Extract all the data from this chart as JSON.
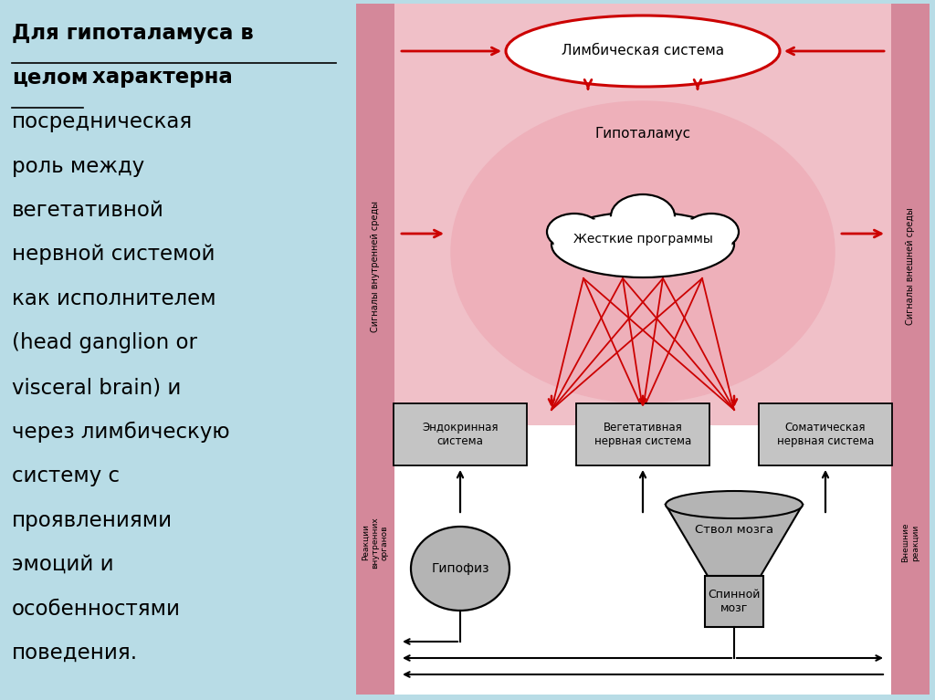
{
  "bg_color": "#b8dce6",
  "pink_strip_color": "#d4889a",
  "pink_bg_color": "#f0c0c8",
  "hypo_circle_color": "#eeb0ba",
  "red_color": "#cc0000",
  "gray_fill": "#b4b4b4",
  "gray_box": "#c4c4c4",
  "white": "#ffffff",
  "black": "#000000",
  "limbic_label": "Лимбическая система",
  "hypothalamus_label": "Гипоталамус",
  "programs_label": "Жесткие программы",
  "inner_signals_label": "Сигналы внутренней среды",
  "outer_signals_label": "Сигналы внешней среды",
  "endocrine_label": "Эндокринная\nсистема",
  "vegetative_label": "Вегетативная\nнервная система",
  "somatic_label": "Соматическая\nнервная система",
  "hypophysis_label": "Гипофиз",
  "brainstem_label": "Ствол мозга",
  "spinalcord_label": "Спинной\nмозг",
  "inner_reactions_label": "Реакции\nвнутренних\nорганов",
  "outer_reactions_label": "Внешние\nреакции",
  "line1": "Для гипоталамуса в",
  "line2_u": "целом",
  "line2_r": " характерна",
  "lines_plain": [
    "посредническая",
    "роль между",
    "вегетативной",
    "нервной системой",
    "как исполнителем",
    "(head ganglion or",
    "visceral brain) и",
    "через лимбическую",
    "систему с",
    "проявлениями",
    "эмоций и",
    "особенностями",
    "поведения."
  ]
}
